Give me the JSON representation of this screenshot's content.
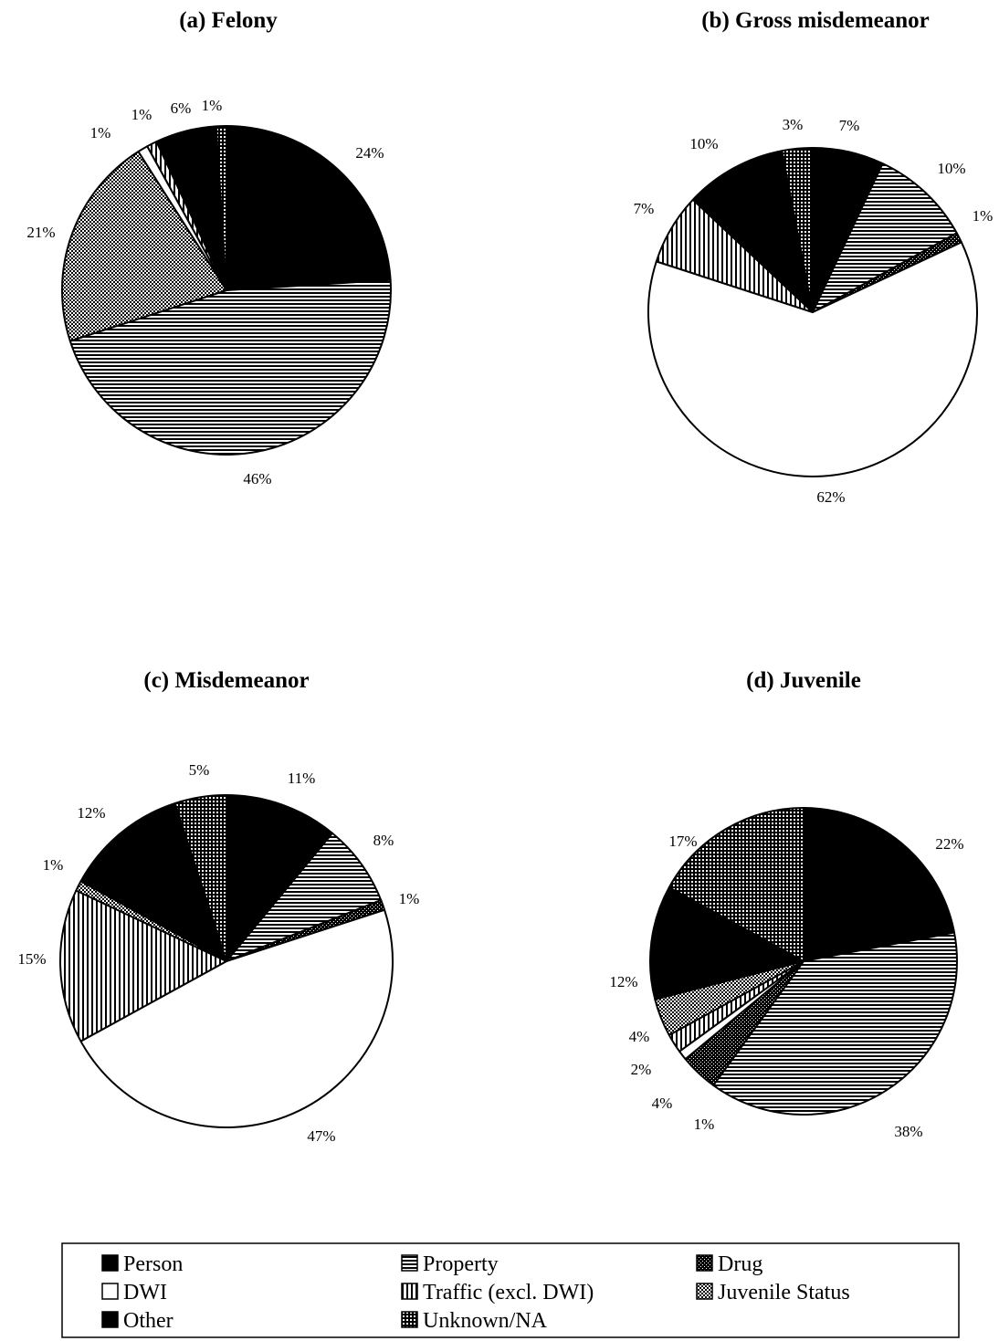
{
  "legend": {
    "title": "",
    "items": [
      {
        "name": "Person",
        "pattern": "solid"
      },
      {
        "name": "Property",
        "pattern": "hstripes"
      },
      {
        "name": "Drug",
        "pattern": "darkdots"
      },
      {
        "name": "DWI",
        "pattern": "white"
      },
      {
        "name": "Traffic (excl. DWI)",
        "pattern": "vstripes"
      },
      {
        "name": "Juvenile Status",
        "pattern": "crosshatch"
      },
      {
        "name": "Other",
        "pattern": "solid"
      },
      {
        "name": "Unknown/NA",
        "pattern": "grid"
      }
    ]
  },
  "chart_data": [
    {
      "type": "pie",
      "title": "(a) Felony",
      "start_angle_deg": 0,
      "direction": "clockwise",
      "slices": [
        {
          "category": "Person",
          "value": 24,
          "label": "24%"
        },
        {
          "category": "Property",
          "value": 46,
          "label": "46%"
        },
        {
          "category": "Juvenile Status",
          "value": 21,
          "label": "21%"
        },
        {
          "category": "DWI",
          "value": 1,
          "label": "1%"
        },
        {
          "category": "Traffic (excl. DWI)",
          "value": 1,
          "label": "1%"
        },
        {
          "category": "Other",
          "value": 6,
          "label": "6%"
        },
        {
          "category": "Unknown/NA",
          "value": 1,
          "label": "1%"
        }
      ]
    },
    {
      "type": "pie",
      "title": "(b) Gross misdemeanor",
      "start_angle_deg": 0,
      "direction": "clockwise",
      "slices": [
        {
          "category": "Person",
          "value": 7,
          "label": "7%"
        },
        {
          "category": "Property",
          "value": 10,
          "label": "10%"
        },
        {
          "category": "Drug",
          "value": 1,
          "label": "1%"
        },
        {
          "category": "DWI",
          "value": 62,
          "label": "62%"
        },
        {
          "category": "Traffic (excl. DWI)",
          "value": 7,
          "label": "7%"
        },
        {
          "category": "Other",
          "value": 10,
          "label": "10%"
        },
        {
          "category": "Unknown/NA",
          "value": 3,
          "label": "3%"
        }
      ]
    },
    {
      "type": "pie",
      "title": "(c) Misdemeanor",
      "start_angle_deg": 0,
      "direction": "clockwise",
      "slices": [
        {
          "category": "Person",
          "value": 11,
          "label": "11%"
        },
        {
          "category": "Property",
          "value": 8,
          "label": "8%"
        },
        {
          "category": "Drug",
          "value": 1,
          "label": "1%"
        },
        {
          "category": "DWI",
          "value": 47,
          "label": "47%"
        },
        {
          "category": "Traffic (excl. DWI)",
          "value": 15,
          "label": "15%"
        },
        {
          "category": "Juvenile Status",
          "value": 1,
          "label": "1%"
        },
        {
          "category": "Other",
          "value": 12,
          "label": "12%"
        },
        {
          "category": "Unknown/NA",
          "value": 5,
          "label": "5%"
        }
      ]
    },
    {
      "type": "pie",
      "title": "(d) Juvenile",
      "start_angle_deg": 0,
      "direction": "clockwise",
      "slices": [
        {
          "category": "Person",
          "value": 22,
          "label": "22%"
        },
        {
          "category": "Property",
          "value": 38,
          "label": "38%"
        },
        {
          "category": "Drug",
          "value": 4,
          "label": "4%"
        },
        {
          "category": "DWI",
          "value": 1,
          "label": "1%"
        },
        {
          "category": "Traffic (excl. DWI)",
          "value": 2,
          "label": "2%"
        },
        {
          "category": "Juvenile Status",
          "value": 4,
          "label": "4%"
        },
        {
          "category": "Other",
          "value": 12,
          "label": "12%"
        },
        {
          "category": "Unknown/NA",
          "value": 17,
          "label": "17%"
        }
      ]
    }
  ]
}
